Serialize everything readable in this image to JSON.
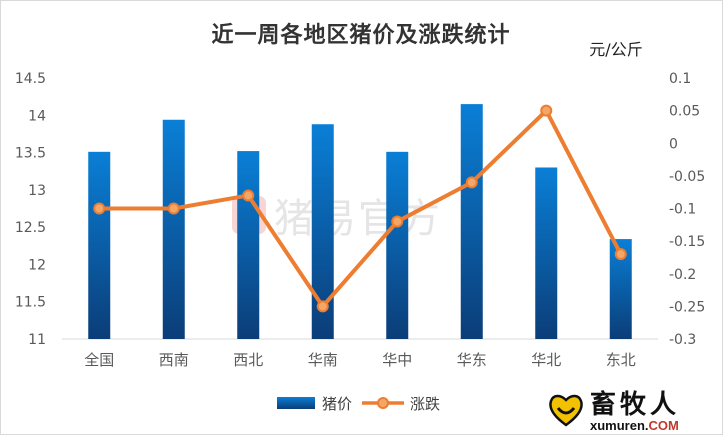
{
  "chart_data": {
    "type": "bar+line",
    "title": "近一周各地区猪价及涨跌统计",
    "y2_unit_label": "元/公斤",
    "categories": [
      "全国",
      "西南",
      "西北",
      "华南",
      "华中",
      "华东",
      "华北",
      "东北"
    ],
    "series": [
      {
        "name": "猪价",
        "type": "bar",
        "axis": "left",
        "values": [
          13.51,
          13.94,
          13.52,
          13.88,
          13.51,
          14.15,
          13.3,
          12.34
        ]
      },
      {
        "name": "涨跌",
        "type": "line",
        "axis": "right",
        "values": [
          -0.1,
          -0.1,
          -0.08,
          -0.25,
          -0.12,
          -0.06,
          0.05,
          -0.17
        ]
      }
    ],
    "y_left": {
      "min": 11,
      "max": 14.5,
      "ticks": [
        "14.5",
        "14",
        "13.5",
        "13",
        "12.5",
        "12",
        "11.5",
        "11"
      ]
    },
    "y_right": {
      "min": -0.3,
      "max": 0.1,
      "ticks": [
        "0.1",
        "0.05",
        "0",
        "-0.05",
        "-0.1",
        "-0.15",
        "-0.2",
        "-0.25",
        "-0.3"
      ]
    },
    "legend_position": "bottom",
    "grid": false,
    "colors": {
      "bar_top": "#0a7fd6",
      "bar_bottom": "#0b3d78",
      "line": "#ed7d31",
      "marker_fill": "#f4a667"
    }
  },
  "watermark": {
    "text": "猪易官方",
    "badge": "B"
  },
  "logo": {
    "cn": "畜牧人",
    "en_main": "xumuren.",
    "en_tld": "COM"
  }
}
